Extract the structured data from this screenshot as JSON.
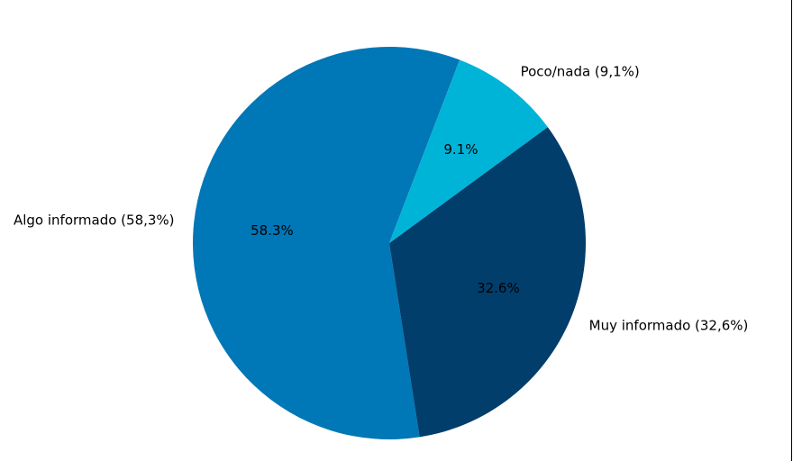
{
  "chart_data": {
    "type": "pie",
    "title": "",
    "slices": [
      {
        "label": "Algo informado (58,3%)",
        "value": 58.3,
        "pct_label": "58.3%",
        "color": "#0077b6"
      },
      {
        "label": "Muy informado (32,6%)",
        "value": 32.6,
        "pct_label": "32.6%",
        "color": "#023e6b"
      },
      {
        "label": "Poco/nada (9,1%)",
        "value": 9.1,
        "pct_label": "9.1%",
        "color": "#00b4d8"
      }
    ],
    "start_angle_deg": 69.0,
    "direction": "counterclockwise",
    "legend": "none"
  }
}
